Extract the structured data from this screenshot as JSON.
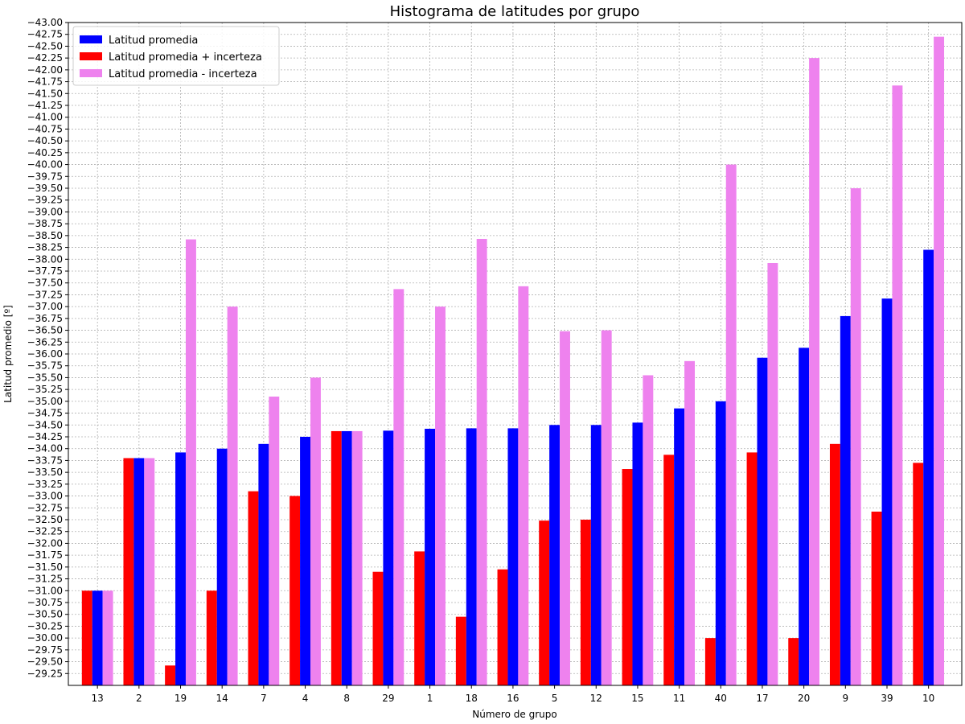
{
  "chart_data": {
    "type": "bar",
    "title": "Histograma de latitudes por grupo",
    "xlabel": "Número de grupo",
    "ylabel": "Latitud promedio [º]",
    "ylim": [
      -29.0,
      -43.0
    ],
    "ytick_step": 0.25,
    "ytick_range": [
      -29.25,
      -43.0
    ],
    "grid": true,
    "legend_position": "top-left",
    "categories": [
      "13",
      "2",
      "19",
      "14",
      "7",
      "4",
      "8",
      "29",
      "1",
      "18",
      "16",
      "5",
      "12",
      "15",
      "11",
      "40",
      "17",
      "20",
      "9",
      "39",
      "10"
    ],
    "series": [
      {
        "name": "Latitud promedia + incerteza",
        "color": "#ff0000",
        "values": [
          -31.0,
          -33.8,
          -29.42,
          -31.0,
          -33.1,
          -33.0,
          -34.37,
          -31.4,
          -31.83,
          -30.45,
          -31.45,
          -32.48,
          -32.5,
          -33.57,
          -33.87,
          -30.0,
          -33.92,
          -30.0,
          -34.1,
          -32.67,
          -33.7
        ]
      },
      {
        "name": "Latitud promedia",
        "color": "#0000ff",
        "values": [
          -31.0,
          -33.8,
          -33.92,
          -34.0,
          -34.1,
          -34.25,
          -34.37,
          -34.38,
          -34.42,
          -34.43,
          -34.43,
          -34.5,
          -34.5,
          -34.55,
          -34.85,
          -35.0,
          -35.92,
          -36.13,
          -36.8,
          -37.17,
          -38.2
        ]
      },
      {
        "name": "Latitud promedia - incerteza",
        "color": "#ee82ee",
        "values": [
          -31.0,
          -33.8,
          -38.42,
          -37.0,
          -35.1,
          -35.5,
          -34.37,
          -37.37,
          -37.0,
          -38.43,
          -37.43,
          -36.48,
          -36.5,
          -35.55,
          -35.85,
          -40.0,
          -37.92,
          -42.25,
          -39.5,
          -41.67,
          -42.7
        ]
      }
    ],
    "legend_order": [
      "Latitud promedia",
      "Latitud promedia + incerteza",
      "Latitud promedia - incerteza"
    ]
  }
}
